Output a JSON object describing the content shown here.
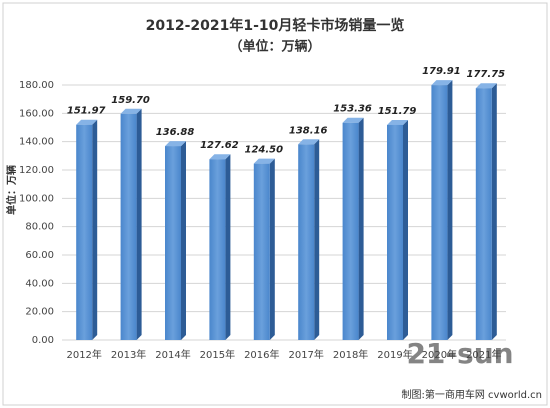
{
  "chart_data": {
    "type": "bar",
    "title": "2012-2021年1-10月轻卡市场销量一览",
    "subtitle": "（单位：万辆）",
    "y_label": "单位：万辆",
    "categories": [
      "2012年",
      "2013年",
      "2014年",
      "2015年",
      "2016年",
      "2017年",
      "2018年",
      "2019年",
      "2020年",
      "2021年"
    ],
    "values": [
      151.97,
      159.7,
      136.88,
      127.62,
      124.5,
      138.16,
      153.36,
      151.79,
      179.91,
      177.75
    ],
    "value_labels": [
      "151.97",
      "159.70",
      "136.88",
      "127.62",
      "124.50",
      "138.16",
      "153.36",
      "151.79",
      "179.91",
      "177.75"
    ],
    "color": "#4a86cc",
    "ylim": [
      0,
      180
    ],
    "yticks": [
      {
        "value": 0,
        "label": "0.00"
      },
      {
        "value": 20,
        "label": "20.00"
      },
      {
        "value": 40,
        "label": "40.00"
      },
      {
        "value": 60,
        "label": "60.00"
      },
      {
        "value": 80,
        "label": "80.00"
      },
      {
        "value": 100,
        "label": "100.00"
      },
      {
        "value": 120,
        "label": "120.00"
      },
      {
        "value": 140,
        "label": "140.00"
      },
      {
        "value": 160,
        "label": "160.00"
      },
      {
        "value": 180,
        "label": "180.00"
      }
    ],
    "grid": true,
    "source": "制图:第一商用车网 cvworld.cn",
    "watermark": "21-sun"
  }
}
